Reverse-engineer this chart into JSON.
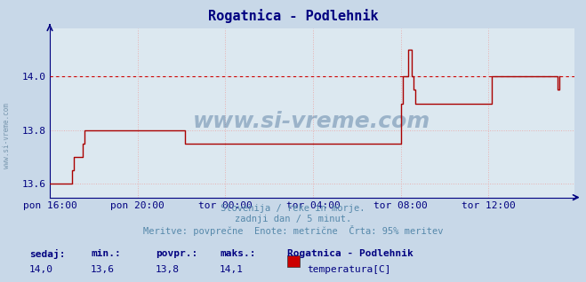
{
  "title": "Rogatnica - Podlehnik",
  "title_color": "#000080",
  "bg_color": "#c8d8e8",
  "plot_bg_color": "#dce8f0",
  "grid_color": "#e8b0b0",
  "line_color": "#aa0000",
  "axis_color": "#000080",
  "tick_color": "#000080",
  "dashed_line_color": "#cc0000",
  "dashed_line_value": 14.0,
  "ylim": [
    13.55,
    14.18
  ],
  "yticks": [
    13.6,
    13.8,
    14.0
  ],
  "xtick_labels": [
    "pon 16:00",
    "pon 20:00",
    "tor 00:00",
    "tor 04:00",
    "tor 08:00",
    "tor 12:00"
  ],
  "xtick_positions": [
    0,
    48,
    96,
    144,
    192,
    240
  ],
  "total_points": 288,
  "subtitle_lines": [
    "Slovenija / reke in morje.",
    "zadnji dan / 5 minut.",
    "Meritve: povprečne  Enote: metrične  Črta: 95% meritev"
  ],
  "footer_labels": [
    "sedaj:",
    "min.:",
    "povpr.:",
    "maks.:"
  ],
  "footer_values": [
    "14,0",
    "13,6",
    "13,8",
    "14,1"
  ],
  "footer_station": "Rogatnica - Podlehnik",
  "footer_measure": "temperatura[C]",
  "legend_color": "#cc0000",
  "watermark": "www.si-vreme.com",
  "left_watermark": "www.si-vreme.com",
  "data_y": [
    13.6,
    13.6,
    13.6,
    13.6,
    13.6,
    13.6,
    13.6,
    13.6,
    13.6,
    13.6,
    13.6,
    13.6,
    13.65,
    13.7,
    13.7,
    13.7,
    13.7,
    13.7,
    13.75,
    13.8,
    13.8,
    13.8,
    13.8,
    13.8,
    13.8,
    13.8,
    13.8,
    13.8,
    13.8,
    13.8,
    13.8,
    13.8,
    13.8,
    13.8,
    13.8,
    13.8,
    13.8,
    13.8,
    13.8,
    13.8,
    13.8,
    13.8,
    13.8,
    13.8,
    13.8,
    13.8,
    13.8,
    13.8,
    13.8,
    13.8,
    13.8,
    13.8,
    13.8,
    13.8,
    13.8,
    13.8,
    13.8,
    13.8,
    13.8,
    13.8,
    13.8,
    13.8,
    13.8,
    13.8,
    13.8,
    13.8,
    13.8,
    13.8,
    13.8,
    13.8,
    13.8,
    13.8,
    13.8,
    13.8,
    13.75,
    13.75,
    13.75,
    13.75,
    13.75,
    13.75,
    13.75,
    13.75,
    13.75,
    13.75,
    13.75,
    13.75,
    13.75,
    13.75,
    13.75,
    13.75,
    13.75,
    13.75,
    13.75,
    13.75,
    13.75,
    13.75,
    13.75,
    13.75,
    13.75,
    13.75,
    13.75,
    13.75,
    13.75,
    13.75,
    13.75,
    13.75,
    13.75,
    13.75,
    13.75,
    13.75,
    13.75,
    13.75,
    13.75,
    13.75,
    13.75,
    13.75,
    13.75,
    13.75,
    13.75,
    13.75,
    13.75,
    13.75,
    13.75,
    13.75,
    13.75,
    13.75,
    13.75,
    13.75,
    13.75,
    13.75,
    13.75,
    13.75,
    13.75,
    13.75,
    13.75,
    13.75,
    13.75,
    13.75,
    13.75,
    13.75,
    13.75,
    13.75,
    13.75,
    13.75,
    13.75,
    13.75,
    13.75,
    13.75,
    13.75,
    13.75,
    13.75,
    13.75,
    13.75,
    13.75,
    13.75,
    13.75,
    13.75,
    13.75,
    13.75,
    13.75,
    13.75,
    13.75,
    13.75,
    13.75,
    13.75,
    13.75,
    13.75,
    13.75,
    13.75,
    13.75,
    13.75,
    13.75,
    13.75,
    13.75,
    13.75,
    13.75,
    13.75,
    13.75,
    13.75,
    13.75,
    13.75,
    13.75,
    13.75,
    13.75,
    13.75,
    13.75,
    13.75,
    13.75,
    13.75,
    13.75,
    13.75,
    13.75,
    13.9,
    14.0,
    14.0,
    14.0,
    14.1,
    14.1,
    14.0,
    13.95,
    13.9,
    13.9,
    13.9,
    13.9,
    13.9,
    13.9,
    13.9,
    13.9,
    13.9,
    13.9,
    13.9,
    13.9,
    13.9,
    13.9,
    13.9,
    13.9,
    13.9,
    13.9,
    13.9,
    13.9,
    13.9,
    13.9,
    13.9,
    13.9,
    13.9,
    13.9,
    13.9,
    13.9,
    13.9,
    13.9,
    13.9,
    13.9,
    13.9,
    13.9,
    13.9,
    13.9,
    13.9,
    13.9,
    13.9,
    13.9,
    13.9,
    13.9,
    14.0,
    14.0,
    14.0,
    14.0,
    14.0,
    14.0,
    14.0,
    14.0,
    14.0,
    14.0,
    14.0,
    14.0,
    14.0,
    14.0,
    14.0,
    14.0,
    14.0,
    14.0,
    14.0,
    14.0,
    14.0,
    14.0,
    14.0,
    14.0,
    14.0,
    14.0,
    14.0,
    14.0,
    14.0,
    14.0,
    14.0,
    14.0,
    14.0,
    14.0,
    14.0,
    14.0,
    13.95,
    14.0
  ]
}
